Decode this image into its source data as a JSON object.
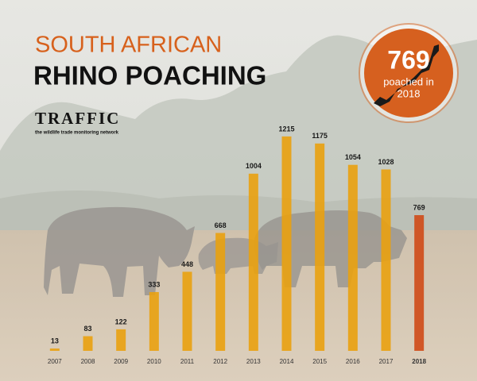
{
  "chart_data": {
    "type": "bar",
    "title": "SOUTH AFRICAN",
    "subtitle": "RHINO POACHING",
    "logo": {
      "name": "TRAFFIC",
      "tagline": "the wildlife trade monitoring network"
    },
    "badge": {
      "value": 769,
      "lines": [
        "poached in",
        "2018"
      ]
    },
    "categories": [
      "2007",
      "2008",
      "2009",
      "2010",
      "2011",
      "2012",
      "2013",
      "2014",
      "2015",
      "2016",
      "2017",
      "2018"
    ],
    "values": [
      13,
      83,
      122,
      333,
      448,
      668,
      1004,
      1215,
      1175,
      1054,
      1028,
      769
    ],
    "colors": [
      "#e9a10f",
      "#e9a10f",
      "#e9a10f",
      "#e9a10f",
      "#e9a10f",
      "#e9a10f",
      "#e9a10f",
      "#e9a10f",
      "#e9a10f",
      "#e9a10f",
      "#e9a10f",
      "#cf4a17"
    ],
    "ylim": [
      0,
      1300
    ]
  }
}
